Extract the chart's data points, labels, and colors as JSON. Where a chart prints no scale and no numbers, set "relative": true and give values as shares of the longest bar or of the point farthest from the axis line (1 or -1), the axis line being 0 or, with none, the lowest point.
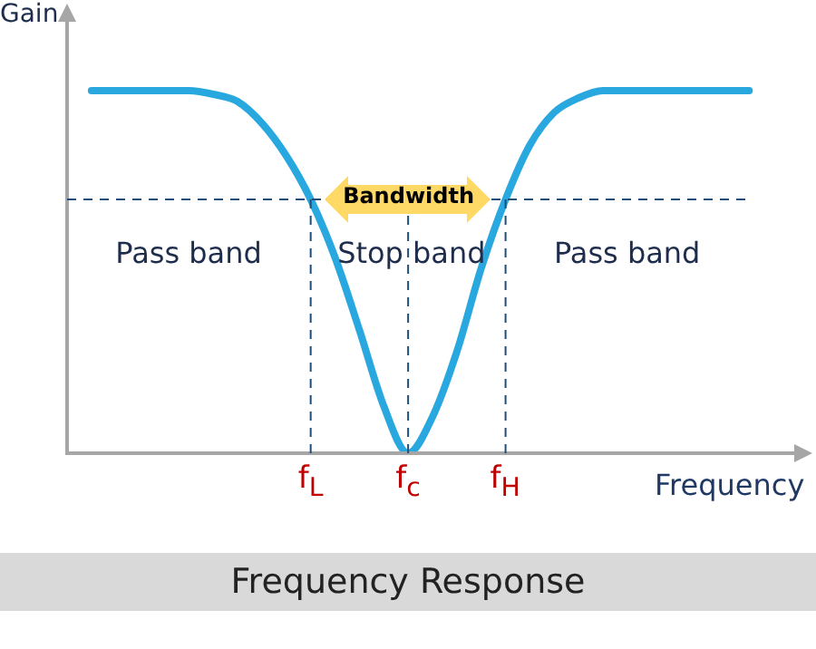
{
  "chart_data": {
    "type": "line",
    "title": "Frequency Response",
    "xlabel": "Frequency",
    "ylabel": "Gain",
    "relative": true,
    "categories": [
      null,
      null,
      null,
      null,
      null,
      null,
      null,
      null,
      null,
      null,
      "f$_{L}$",
      null,
      null,
      null,
      "f$_{c}$",
      null,
      null,
      null,
      "f$_{H}$",
      null,
      null,
      null,
      null,
      null,
      null,
      null,
      null,
      null,
      null,
      null,
      null
    ],
    "series": [
      {
        "color": "#29a8e0",
        "values": [
          null,
          1,
          1,
          1,
          1,
          1,
          0.99,
          0.97,
          0.91,
          0.82,
          0.7,
          0.54,
          0.34,
          0.13,
          0,
          0.1,
          0.28,
          0.51,
          0.7,
          0.85,
          0.94,
          0.98,
          1,
          1,
          1,
          1,
          1,
          1,
          1,
          null,
          null
        ]
      }
    ],
    "ref_lines": [
      {
        "axis": "y",
        "value": 0.7,
        "color": "#1f4e79",
        "line_style": "dashed"
      },
      {
        "axis": "x",
        "value": "f$_{L}$",
        "color": "#1f4e79",
        "line_style": "dashed"
      },
      {
        "axis": "x",
        "value": "f$_{c}$",
        "color": "#1f4e79",
        "line_style": "dashed"
      },
      {
        "axis": "x",
        "value": "f$_{H}$",
        "color": "#1f4e79",
        "line_style": "dashed"
      }
    ],
    "annotations": [
      "Pass band",
      "Stop band",
      "Pass band",
      "Bandwidth"
    ],
    "legend": false,
    "marker": "none",
    "line_style": "solid"
  }
}
